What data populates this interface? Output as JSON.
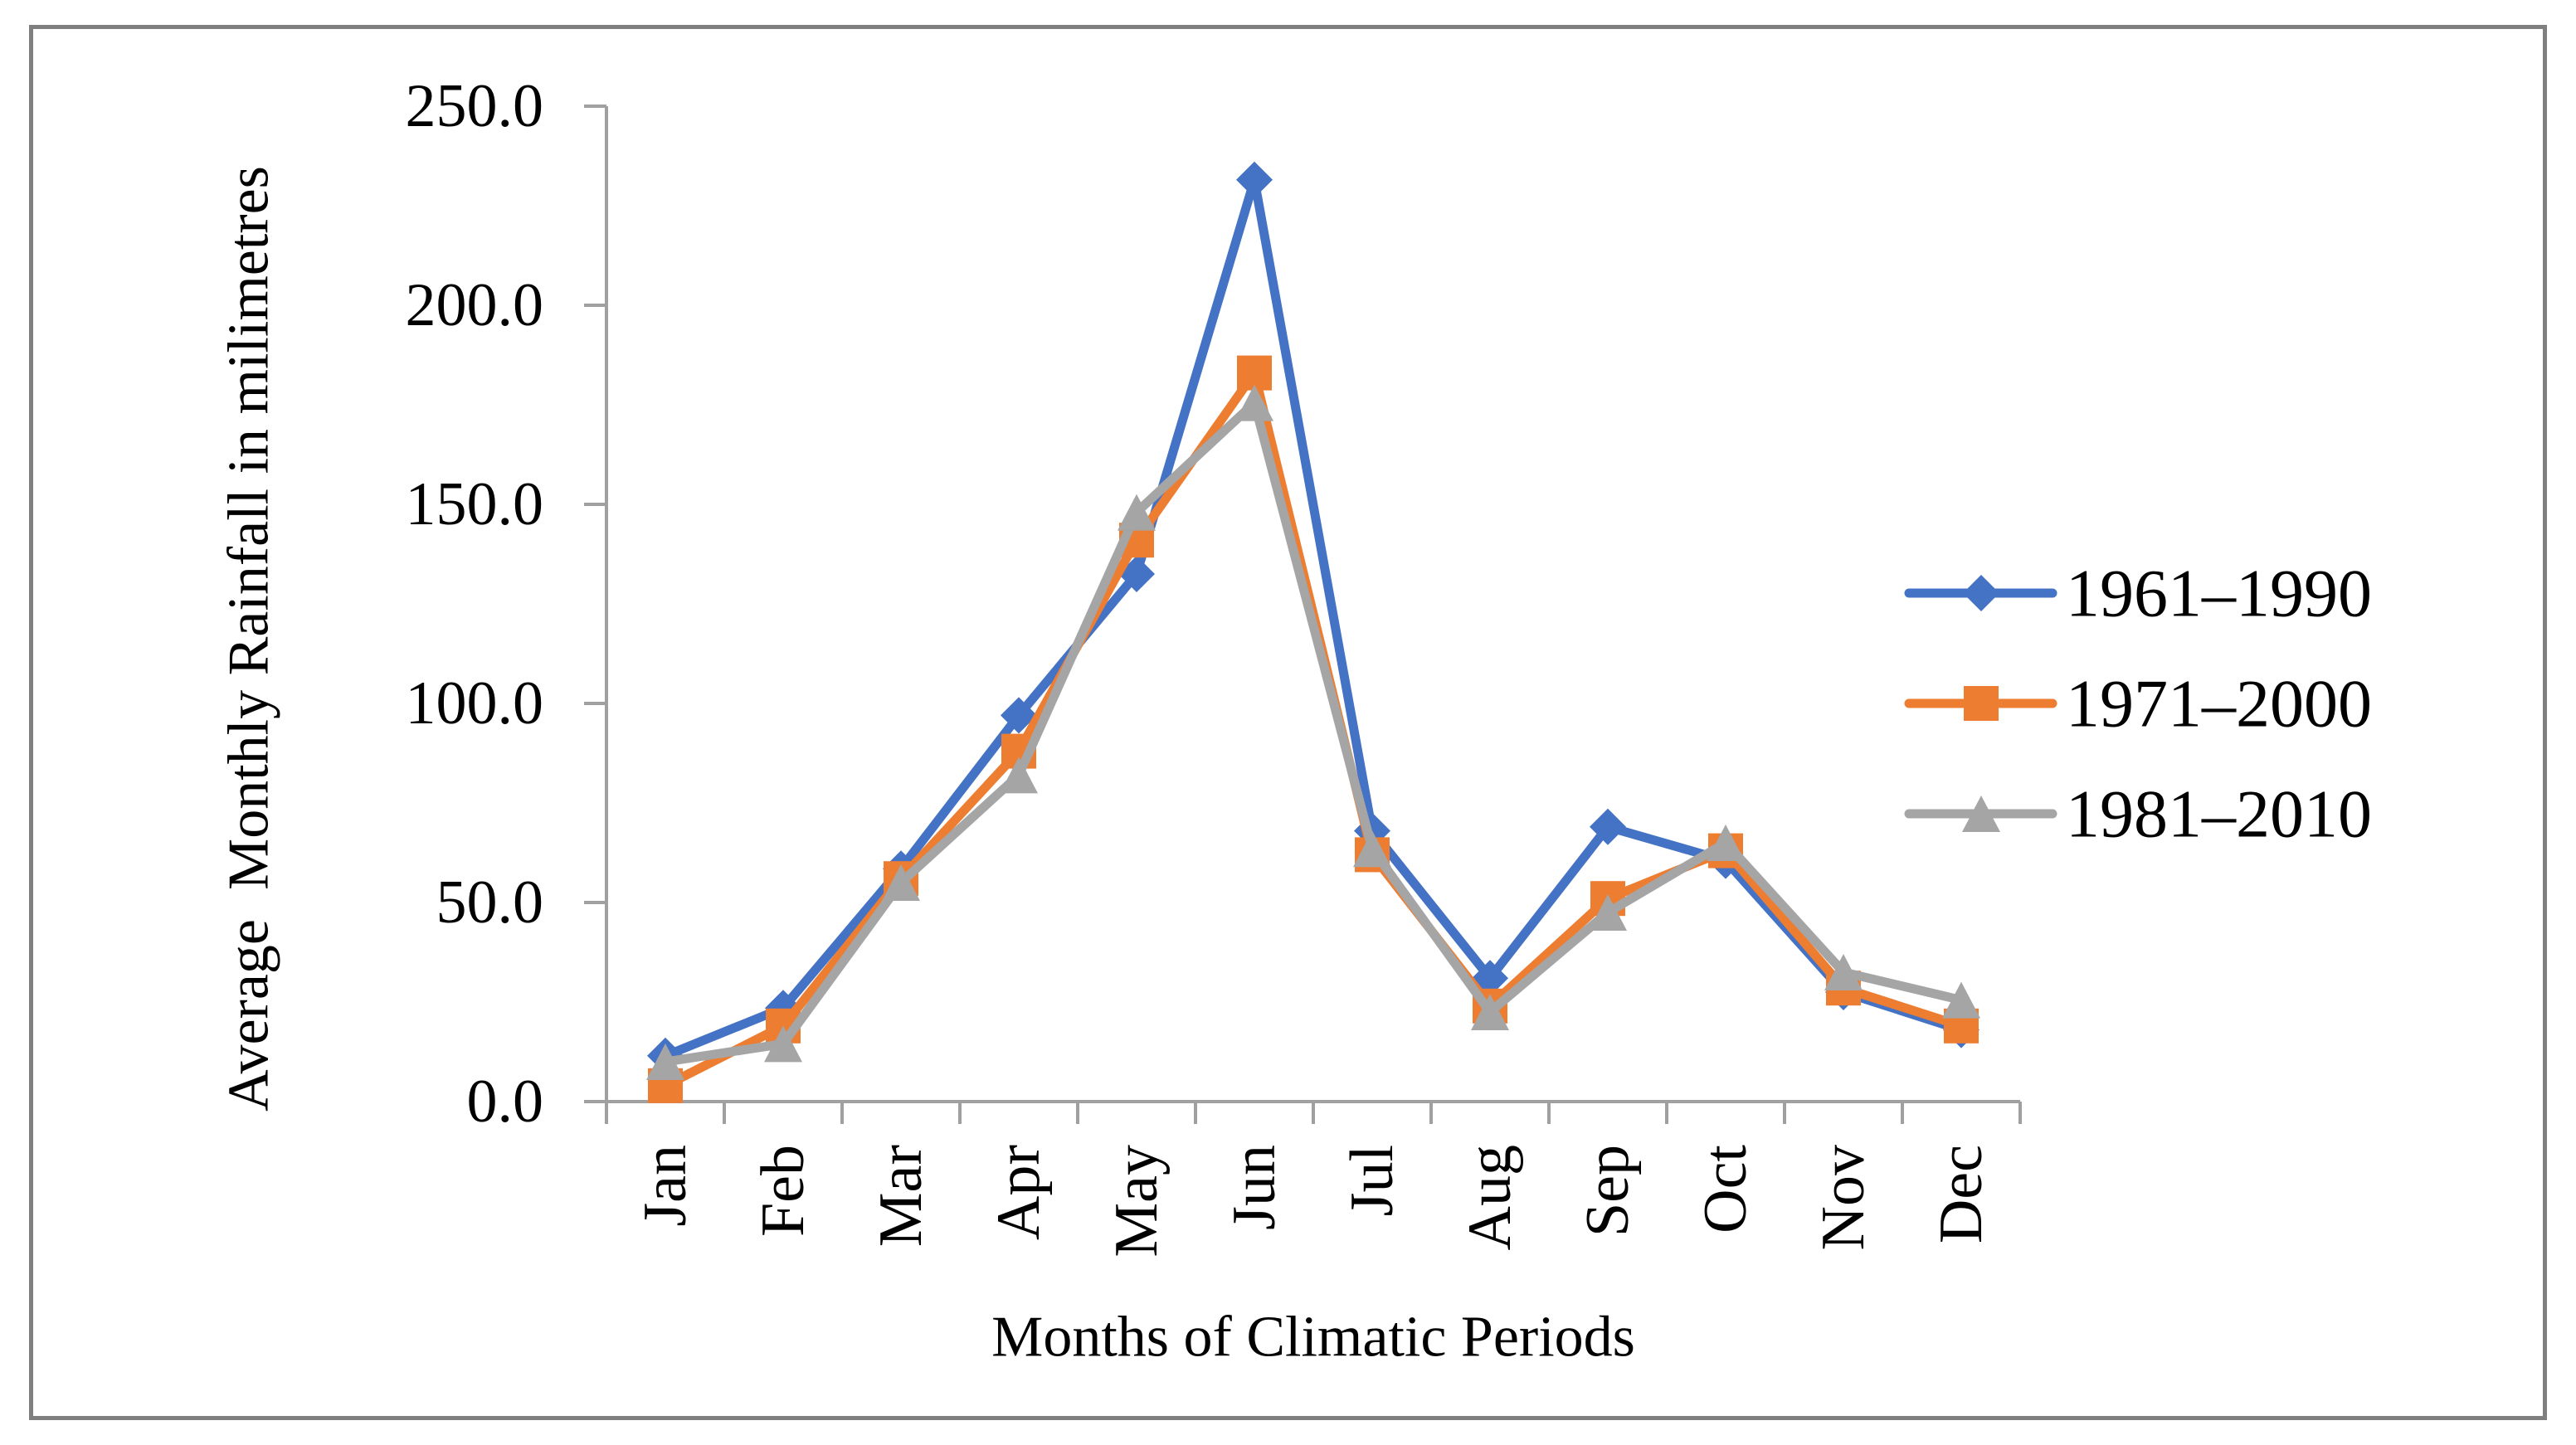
{
  "figure": {
    "background": "#FFFFFF",
    "border_color": "#7F7F7F",
    "axis_color": "#A0A0A0",
    "text_color": "#000000"
  },
  "chart_data": {
    "type": "line",
    "title": "",
    "xlabel": "Months of Climatic Periods",
    "ylabel": "Average  Monthly Rainfall in milimetres",
    "categories": [
      "Jan",
      "Feb",
      "Mar",
      "Apr",
      "May",
      "Jun",
      "Jul",
      "Aug",
      "Sep",
      "Oct",
      "Nov",
      "Dec"
    ],
    "ytick_labels": [
      "250.0",
      "200.0",
      "150.0",
      "100.0",
      "50.0",
      "0.0"
    ],
    "ylim": [
      0,
      250
    ],
    "ytick_step": 50,
    "grid": false,
    "legend_position": "right",
    "series": [
      {
        "name": "1961–1990",
        "color": "#4472C4",
        "marker": "diamond",
        "values": [
          11.5,
          23.5,
          58.5,
          97.0,
          132.5,
          231.5,
          68.0,
          31.0,
          69.0,
          60.5,
          27.5,
          18.0
        ]
      },
      {
        "name": "1971–2000",
        "color": "#ED7D31",
        "marker": "square",
        "values": [
          4.0,
          19.0,
          56.0,
          88.0,
          141.0,
          183.0,
          62.0,
          24.0,
          51.0,
          63.0,
          28.5,
          19.0
        ]
      },
      {
        "name": "1981–2010",
        "color": "#A5A5A5",
        "marker": "triangle",
        "values": [
          10.0,
          14.5,
          55.0,
          82.0,
          148.0,
          175.5,
          63.5,
          22.5,
          47.5,
          65.0,
          32.5,
          25.5
        ]
      }
    ]
  }
}
